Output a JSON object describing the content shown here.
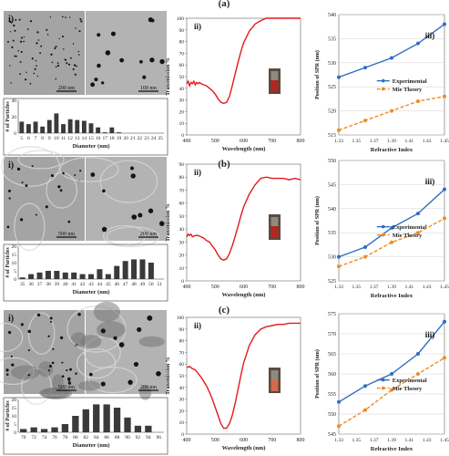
{
  "row_labels": [
    "(a)",
    "(b)",
    "(c)"
  ],
  "panel_labels": {
    "i": "i)",
    "ii": "ii)",
    "iii": "iii)"
  },
  "colors": {
    "transmission": "#e31a1c",
    "experimental": "#2f6fbf",
    "mie": "#f08a24",
    "tem_bg": "#a9a9a9",
    "bar": "#3a3a3a"
  },
  "tem_scale_bars": [
    [
      "200 nm",
      "100 nm"
    ],
    [
      "500 nm",
      "200 nm"
    ],
    [
      "500 nm",
      "200 nm"
    ]
  ],
  "chart_data": [
    {
      "type": "bar",
      "row": "a",
      "xlabel": "Diameter (nm)",
      "ylabel": "# of Particles",
      "ylim": [
        0,
        40
      ],
      "yticks": [
        0,
        20,
        40
      ],
      "categories": [
        "5",
        "6",
        "7",
        "8",
        "9",
        "10",
        "11",
        "12",
        "13",
        "14",
        "15",
        "16",
        "17",
        "18",
        "19",
        "20",
        "21",
        "22",
        "23",
        "24",
        "25"
      ],
      "values": [
        14,
        11,
        14,
        8,
        16,
        24,
        11,
        17,
        16,
        15,
        12,
        7,
        1,
        7,
        1,
        0,
        0,
        0,
        0,
        0,
        0
      ]
    },
    {
      "type": "bar",
      "row": "b",
      "xlabel": "Diameter (nm)",
      "ylabel": "# of Particles",
      "ylim": [
        0,
        20
      ],
      "yticks": [
        0,
        5,
        10,
        15,
        20
      ],
      "categories": [
        "35",
        "36",
        "37",
        "38",
        "39",
        "40",
        "41",
        "42",
        "43",
        "44",
        "45",
        "46",
        "47",
        "48",
        "49",
        "50",
        "51"
      ],
      "values": [
        1,
        3,
        4,
        5,
        5,
        4,
        4,
        3,
        3,
        6,
        3,
        8,
        11,
        12,
        12,
        10,
        0
      ]
    },
    {
      "type": "bar",
      "row": "c",
      "xlabel": "Diameter (nm)",
      "ylabel": "# of Particles",
      "ylim": [
        0,
        20
      ],
      "yticks": [
        0,
        5,
        10,
        15,
        20
      ],
      "categories": [
        "70",
        "72",
        "74",
        "76",
        "78",
        "80",
        "82",
        "84",
        "86",
        "88",
        "90",
        "92",
        "94",
        "96"
      ],
      "values": [
        2,
        3,
        2,
        3,
        5,
        10,
        14,
        17,
        17,
        15,
        9,
        4,
        4,
        0
      ]
    },
    {
      "type": "line",
      "row": "a",
      "xlabel": "Wavelength (nm)",
      "ylabel": "Transmission %",
      "xlim": [
        400,
        800
      ],
      "ylim": [
        0,
        100
      ],
      "xticks": [
        400,
        500,
        600,
        700,
        800
      ],
      "yticks": [
        0,
        10,
        20,
        30,
        40,
        50,
        60,
        70,
        80,
        90,
        100
      ],
      "x": [
        400,
        405,
        410,
        415,
        420,
        425,
        430,
        435,
        440,
        445,
        450,
        460,
        470,
        480,
        490,
        500,
        510,
        520,
        530,
        540,
        550,
        560,
        570,
        580,
        590,
        600,
        620,
        640,
        660,
        680,
        700,
        720,
        740,
        760,
        780,
        800
      ],
      "y": [
        44,
        46,
        42,
        45,
        44,
        46,
        43,
        45,
        44,
        45,
        44,
        43,
        42,
        40,
        38,
        35,
        31,
        28,
        27,
        28,
        33,
        42,
        52,
        62,
        71,
        79,
        89,
        95,
        98,
        100,
        100,
        100,
        101,
        101,
        101,
        101
      ]
    },
    {
      "type": "line",
      "row": "b",
      "xlabel": "Wavelength (nm)",
      "ylabel": "Transmission %",
      "xlim": [
        400,
        800
      ],
      "ylim": [
        0,
        90
      ],
      "xticks": [
        400,
        500,
        600,
        700,
        800
      ],
      "yticks": [
        0,
        10,
        20,
        30,
        40,
        50,
        60,
        70,
        80,
        90
      ],
      "x": [
        400,
        405,
        410,
        415,
        420,
        430,
        440,
        450,
        460,
        470,
        480,
        490,
        500,
        510,
        520,
        530,
        540,
        550,
        560,
        570,
        580,
        590,
        600,
        620,
        640,
        660,
        680,
        700,
        720,
        740,
        760,
        780,
        800
      ],
      "y": [
        34,
        36,
        35,
        36,
        34,
        35,
        35,
        34,
        33,
        31,
        30,
        27,
        24,
        20,
        17,
        16,
        17,
        21,
        27,
        34,
        42,
        50,
        57,
        67,
        74,
        79,
        80,
        79,
        79,
        79,
        78,
        79,
        78
      ]
    },
    {
      "type": "line",
      "row": "c",
      "xlabel": "Wavelength (nm)",
      "ylabel": "Transmission %",
      "xlim": [
        400,
        800
      ],
      "ylim": [
        0,
        100
      ],
      "xticks": [
        400,
        500,
        600,
        700,
        800
      ],
      "yticks": [
        0,
        10,
        20,
        30,
        40,
        50,
        60,
        70,
        80,
        90,
        100
      ],
      "x": [
        400,
        410,
        420,
        430,
        440,
        450,
        460,
        470,
        480,
        490,
        500,
        510,
        520,
        530,
        540,
        550,
        560,
        570,
        580,
        590,
        600,
        620,
        640,
        660,
        680,
        700,
        720,
        740,
        760,
        780,
        800
      ],
      "y": [
        57,
        58,
        56,
        55,
        52,
        49,
        45,
        41,
        36,
        30,
        23,
        16,
        9,
        5,
        5,
        9,
        16,
        26,
        38,
        50,
        61,
        76,
        85,
        90,
        92,
        93,
        94,
        94,
        95,
        95,
        95
      ]
    },
    {
      "type": "line",
      "row": "a",
      "xlabel": "Refractive Index",
      "ylabel": "Position of SPR (nm)",
      "xlim": [
        1.33,
        1.45
      ],
      "ylim": [
        515,
        540
      ],
      "xticks": [
        "1.33",
        "1.35",
        "1.37",
        "1.39",
        "1.41",
        "1.43",
        "1.45"
      ],
      "yticks": [
        515,
        520,
        525,
        530,
        535,
        540
      ],
      "series": [
        {
          "name": "Experimental",
          "x": [
            1.33,
            1.36,
            1.39,
            1.42,
            1.45
          ],
          "y": [
            527,
            529,
            531,
            534,
            538
          ]
        },
        {
          "name": "Mie Theory",
          "x": [
            1.33,
            1.36,
            1.39,
            1.42,
            1.45
          ],
          "y": [
            516,
            518,
            520,
            522,
            523
          ]
        }
      ],
      "legend": "right"
    },
    {
      "type": "line",
      "row": "b",
      "xlabel": "Refractive Index",
      "ylabel": "Position of SPR (nm)",
      "xlim": [
        1.33,
        1.45
      ],
      "ylim": [
        525,
        550
      ],
      "xticks": [
        "1.33",
        "1.35",
        "1.37",
        "1.39",
        "1.41",
        "1.43",
        "1.45"
      ],
      "yticks": [
        525,
        530,
        535,
        540,
        545,
        550
      ],
      "series": [
        {
          "name": "Experimental",
          "x": [
            1.33,
            1.36,
            1.39,
            1.42,
            1.45
          ],
          "y": [
            530,
            532,
            536,
            539,
            544
          ]
        },
        {
          "name": "Mie Theory",
          "x": [
            1.33,
            1.36,
            1.39,
            1.42,
            1.45
          ],
          "y": [
            528,
            530,
            533,
            535,
            538
          ]
        }
      ],
      "legend": "right"
    },
    {
      "type": "line",
      "row": "c",
      "xlabel": "Refractive Index",
      "ylabel": "Position of SPR (nm)",
      "xlim": [
        1.33,
        1.45
      ],
      "ylim": [
        545,
        575
      ],
      "xticks": [
        "1.33",
        "1.35",
        "1.37",
        "1.39",
        "1.41",
        "1.43",
        "1.45"
      ],
      "yticks": [
        545,
        550,
        555,
        560,
        565,
        570,
        575
      ],
      "series": [
        {
          "name": "Experimental",
          "x": [
            1.33,
            1.36,
            1.39,
            1.42,
            1.45
          ],
          "y": [
            553,
            557,
            560,
            565,
            573
          ]
        },
        {
          "name": "Mie Theory",
          "x": [
            1.33,
            1.36,
            1.39,
            1.42,
            1.45
          ],
          "y": [
            547,
            551,
            556,
            560,
            564
          ]
        }
      ],
      "legend": "right"
    }
  ]
}
